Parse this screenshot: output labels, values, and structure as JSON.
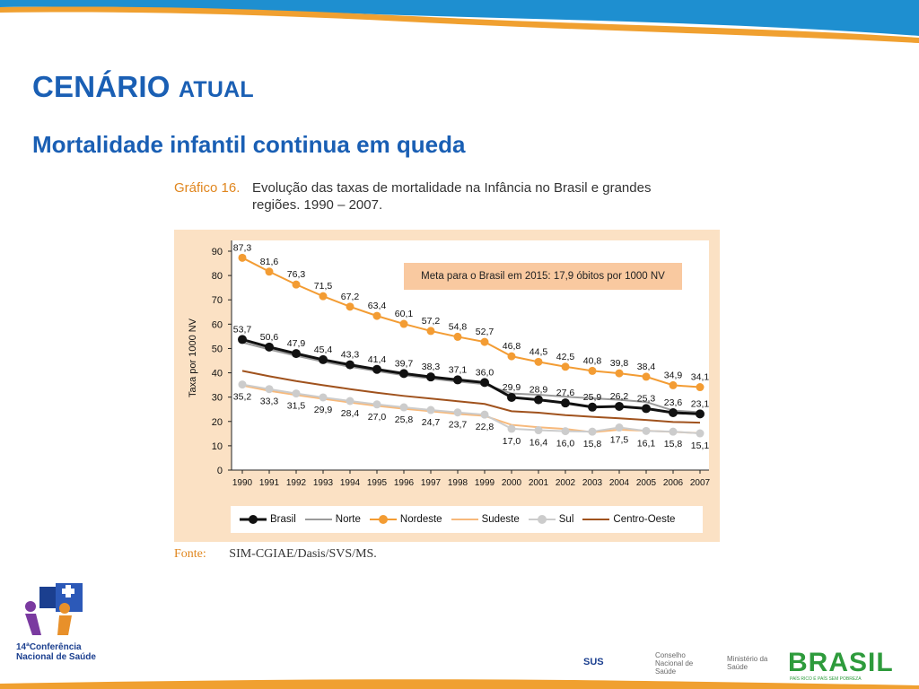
{
  "slide": {
    "title_main": "CENÁRIO",
    "title_small": "ATUAL",
    "subtitle": "Mortalidade infantil continua em queda"
  },
  "figure": {
    "label": "Gráfico 16.",
    "title": "Evolução das taxas de mortalidade na Infância no Brasil e grandes regiões. 1990 – 2007.",
    "source_label": "Fonte:",
    "source_text": "SIM-CGIAE/Dasis/SVS/MS."
  },
  "chart_data": {
    "type": "line",
    "title": "Evolução das taxas de mortalidade na Infância no Brasil e grandes regiões. 1990 – 2007.",
    "xlabel": "",
    "ylabel": "Taxa por 1000 NV",
    "ylim": [
      0,
      90
    ],
    "yticks": [
      0,
      10,
      20,
      30,
      40,
      50,
      60,
      70,
      80,
      90
    ],
    "x": [
      "1990",
      "1991",
      "1992",
      "1993",
      "1994",
      "1995",
      "1996",
      "1997",
      "1998",
      "1999",
      "2000",
      "2001",
      "2002",
      "2003",
      "2004",
      "2005",
      "2006",
      "2007"
    ],
    "annotation": "Meta para o Brasil em 2015: 17,9 óbitos por 1000 NV",
    "legend_position": "bottom",
    "series": [
      {
        "name": "Nordeste",
        "color": "#f39c33",
        "marker": true,
        "labeled": true,
        "label_pos": "above",
        "values": [
          87.3,
          81.6,
          76.3,
          71.5,
          67.2,
          63.4,
          60.1,
          57.2,
          54.8,
          52.7,
          46.8,
          44.5,
          42.5,
          40.8,
          39.8,
          38.4,
          34.9,
          34.1
        ]
      },
      {
        "name": "Norte",
        "color": "#9a9a9a",
        "marker": false,
        "labeled": false,
        "values": [
          52.5,
          49.6,
          47.0,
          44.6,
          42.5,
          40.7,
          39.0,
          37.6,
          36.4,
          35.3,
          31.5,
          31.0,
          30.2,
          29.5,
          28.9,
          28.0,
          24.5,
          23.8
        ]
      },
      {
        "name": "Brasil",
        "color": "#111111",
        "marker": true,
        "labeled": true,
        "label_pos": "above",
        "values": [
          53.7,
          50.6,
          47.9,
          45.4,
          43.3,
          41.4,
          39.7,
          38.3,
          37.1,
          36.0,
          29.9,
          28.9,
          27.6,
          25.9,
          26.2,
          25.3,
          23.6,
          23.1
        ]
      },
      {
        "name": "Centro-Oeste",
        "color": "#a0521d",
        "marker": false,
        "labeled": false,
        "values": [
          40.8,
          38.6,
          36.6,
          34.9,
          33.3,
          31.8,
          30.5,
          29.4,
          28.3,
          27.2,
          24.2,
          23.6,
          22.6,
          21.9,
          21.3,
          20.6,
          19.8,
          19.5
        ]
      },
      {
        "name": "Sudeste",
        "color": "#f7b97b",
        "marker": false,
        "labeled": false,
        "values": [
          34.8,
          32.6,
          30.9,
          29.3,
          27.8,
          26.4,
          25.2,
          24.2,
          23.1,
          22.3,
          18.6,
          17.6,
          16.9,
          15.6,
          16.6,
          16.2,
          15.7,
          15.2
        ]
      },
      {
        "name": "Sul",
        "color": "#cccccc",
        "marker": true,
        "labeled": true,
        "label_pos": "below",
        "values": [
          35.2,
          33.3,
          31.5,
          29.9,
          28.4,
          27.0,
          25.8,
          24.7,
          23.7,
          22.8,
          17.0,
          16.4,
          16.0,
          15.8,
          17.5,
          16.1,
          15.8,
          15.1
        ]
      }
    ],
    "legend_order": [
      "Brasil",
      "Norte",
      "Nordeste",
      "Sudeste",
      "Sul",
      "Centro-Oeste"
    ]
  },
  "logos": {
    "conference_line1": "14ªConferência",
    "conference_line2": "Nacional de Saúde",
    "sus": "SUS",
    "conselho": "Conselho Nacional de Saúde",
    "ministerio": "Ministério da Saúde",
    "brasil": "BRASIL",
    "brasil_tagline": "PAÍS RICO É PAÍS SEM POBREZA"
  }
}
